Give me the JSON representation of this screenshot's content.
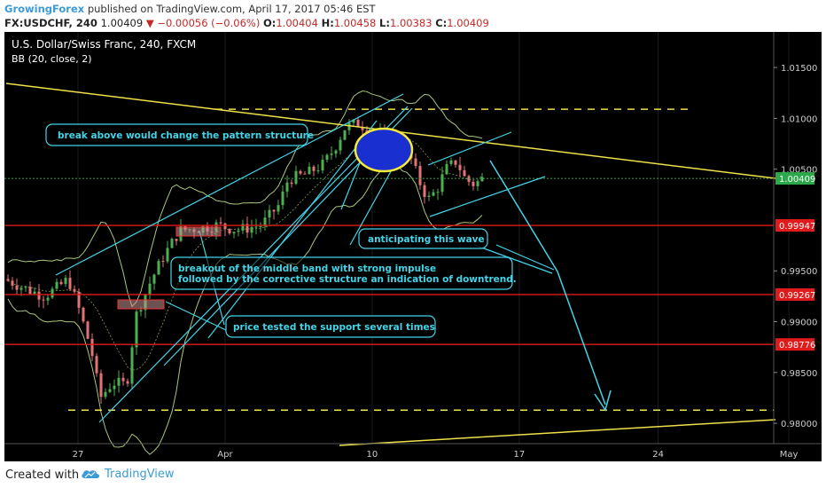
{
  "header": {
    "author": "GrowingForex",
    "published": "published on TradingView.com, April 17, 2017 05:46 EST",
    "symbol": "FX:USDCHF, 240",
    "last": "1.00409",
    "change": "−0.00056 (−0.06%)",
    "o_label": "O:",
    "o_value": "1.00404",
    "h_label": "H:",
    "h_value": "1.00458",
    "l_label": "L:",
    "l_value": "1.00383",
    "c_label": "C:",
    "c_value": "1.00409"
  },
  "chart_data": {
    "type": "candlestick",
    "title": "U.S. Dollar/Swiss Franc, 240, FXCM",
    "indicator": "BB (20, close, 2)",
    "ylim": [
      0.978,
      1.0185
    ],
    "y_ticks": [
      "1.01500",
      "1.01000",
      "1.00500",
      "0.99500",
      "0.99000",
      "0.98500",
      "0.98000"
    ],
    "x_ticks": [
      {
        "label": "27",
        "x": 0.09
      },
      {
        "label": "Apr",
        "x": 0.27
      },
      {
        "label": "10",
        "x": 0.45
      },
      {
        "label": "17",
        "x": 0.63
      },
      {
        "label": "24",
        "x": 0.8
      },
      {
        "label": "May",
        "x": 0.96
      }
    ],
    "current_price": "1.00409",
    "levels": [
      {
        "label": "0.99947",
        "value": 0.99947
      },
      {
        "label": "0.99267",
        "value": 0.99267
      },
      {
        "label": "0.98776",
        "value": 0.98776
      }
    ],
    "dashed_levels": [
      1.0109,
      0.9813
    ],
    "annotations": [
      {
        "text": "break above would change the pattern structure",
        "boxed": true
      },
      {
        "text": "anticipating this wave",
        "boxed": true
      },
      {
        "text": "breakout of the middle band with strong impulse",
        "boxed": false
      },
      {
        "text": "followed by the corrective structure an indication of downtrend.",
        "boxed": false
      },
      {
        "text": "price tested the support several times",
        "boxed": true
      }
    ]
  },
  "footer": {
    "created_with": "Created with",
    "brand": "TradingView"
  }
}
